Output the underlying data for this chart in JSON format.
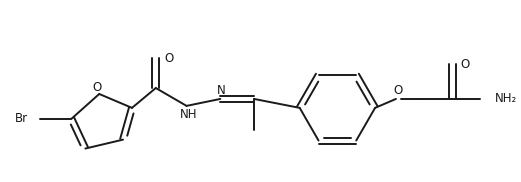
{
  "bg_color": "#ffffff",
  "line_color": "#1a1a1a",
  "line_width": 1.4,
  "font_size": 8.5,
  "figsize": [
    5.21,
    1.82
  ],
  "dpi": 100,
  "xlim": [
    0,
    521
  ],
  "ylim": [
    0,
    182
  ]
}
